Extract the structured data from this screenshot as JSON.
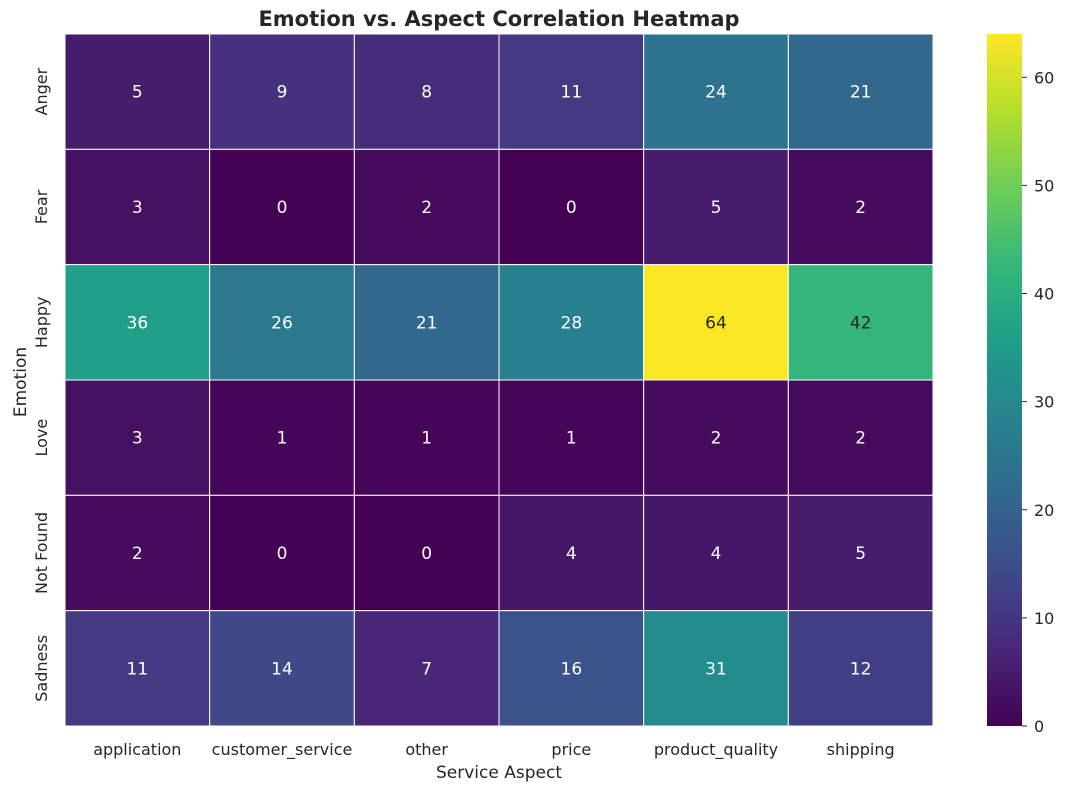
{
  "chart_data": {
    "type": "heatmap",
    "title": "Emotion vs. Aspect Correlation Heatmap",
    "xlabel": "Service Aspect",
    "ylabel": "Emotion",
    "x_categories": [
      "application",
      "customer_service",
      "other",
      "price",
      "product_quality",
      "shipping"
    ],
    "y_categories": [
      "Anger",
      "Fear",
      "Happy",
      "Love",
      "Not Found",
      "Sadness"
    ],
    "values": [
      [
        5,
        9,
        8,
        11,
        24,
        21
      ],
      [
        3,
        0,
        2,
        0,
        5,
        2
      ],
      [
        36,
        26,
        21,
        28,
        64,
        42
      ],
      [
        3,
        1,
        1,
        1,
        2,
        2
      ],
      [
        2,
        0,
        0,
        4,
        4,
        5
      ],
      [
        11,
        14,
        7,
        16,
        31,
        12
      ]
    ],
    "colormap": "viridis",
    "vmin": 0,
    "vmax": 64,
    "colorbar_ticks": [
      0,
      10,
      20,
      30,
      40,
      50,
      60
    ],
    "annotated": true
  }
}
